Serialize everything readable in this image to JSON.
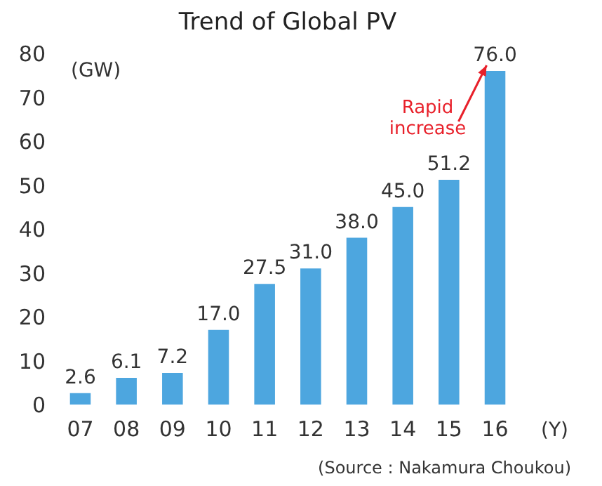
{
  "chart_data": {
    "type": "bar",
    "title": "Trend of Global PV",
    "categories": [
      "07",
      "08",
      "09",
      "10",
      "11",
      "12",
      "13",
      "14",
      "15",
      "16"
    ],
    "values": [
      2.6,
      6.1,
      7.2,
      17.0,
      27.5,
      31.0,
      38.0,
      45.0,
      51.2,
      76.0
    ],
    "value_labels": [
      "2.6",
      "6.1",
      "7.2",
      "17.0",
      "27.5",
      "31.0",
      "38.0",
      "45.0",
      "51.2",
      "76.0"
    ],
    "color": "#4da6df",
    "ylabel": "(GW)",
    "xlabel": "(Y)",
    "ylim": [
      0,
      80
    ],
    "yticks": [
      0,
      10,
      20,
      30,
      40,
      50,
      60,
      70,
      80
    ],
    "annotations": [
      {
        "text": "Rapid increase",
        "x": "16",
        "y": 76
      },
      "(Source : Nakamura Choukou)"
    ]
  }
}
